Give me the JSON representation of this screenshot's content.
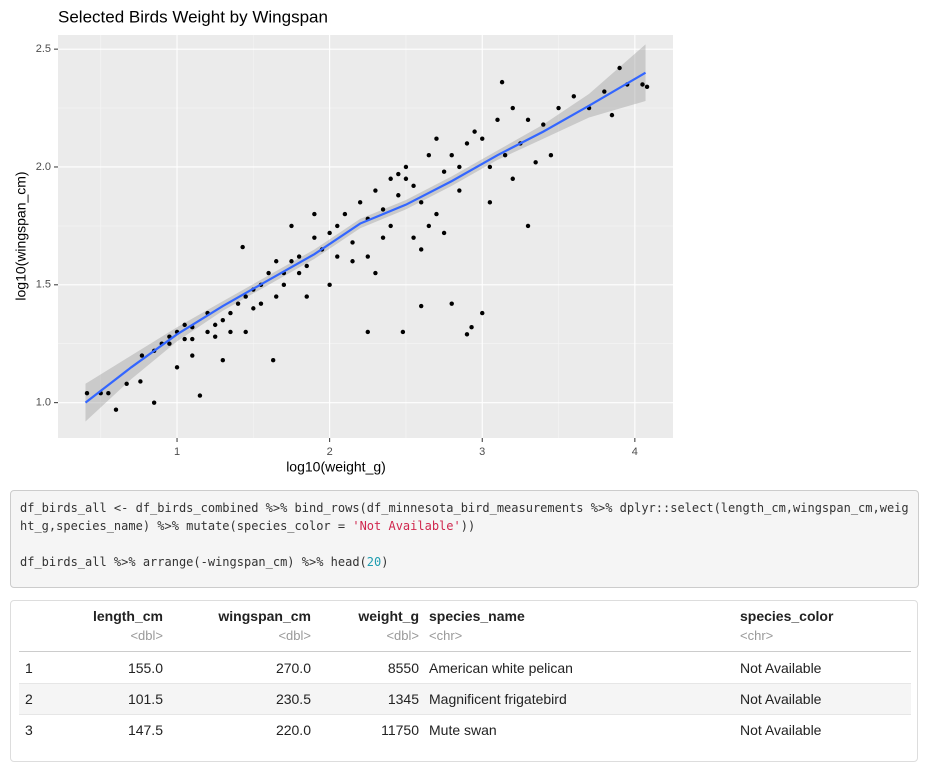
{
  "chart_data": {
    "type": "scatter",
    "title": "Selected Birds Weight by Wingspan",
    "x_label": "log10(weight_g)",
    "y_label": "log10(wingspan_cm)",
    "xlim": [
      0.22,
      4.25
    ],
    "ylim": [
      0.85,
      2.56
    ],
    "xticks": [
      1,
      2,
      3,
      4
    ],
    "yticks": [
      {
        "value": 1,
        "label": "1.0"
      },
      {
        "value": 1.5,
        "label": "1.5"
      },
      {
        "value": 2,
        "label": "2.0"
      },
      {
        "value": 2.5,
        "label": "2.5"
      }
    ],
    "grid": true,
    "color": "#000000",
    "points": {
      "x": [
        0.41,
        0.5,
        0.55,
        0.6,
        0.67,
        0.76,
        0.85,
        0.77,
        0.85,
        0.9,
        0.95,
        1.0,
        1.05,
        1.1,
        1.15,
        1.0,
        1.1,
        1.2,
        1.25,
        1.3,
        1.35,
        1.4,
        1.45,
        1.5,
        1.55,
        1.6,
        1.65,
        1.7,
        1.75,
        1.8,
        1.85,
        1.9,
        1.95,
        2.0,
        2.05,
        2.1,
        2.15,
        2.2,
        2.25,
        2.3,
        2.35,
        2.4,
        2.45,
        2.5,
        2.55,
        2.6,
        2.65,
        2.7,
        2.75,
        2.8,
        2.85,
        2.9,
        2.95,
        3.0,
        3.05,
        3.1,
        3.15,
        3.2,
        3.25,
        3.3,
        3.35,
        3.4,
        3.5,
        3.6,
        3.7,
        3.8,
        3.85,
        3.9,
        3.95,
        4.05,
        4.08,
        3.13,
        2.25,
        2.48,
        2.6,
        2.8,
        2.9,
        2.93,
        3.0,
        1.63,
        1.43,
        1.75,
        1.9,
        2.05,
        2.25,
        1.3,
        1.45,
        1.2,
        1.55,
        2.4,
        2.5,
        2.7,
        2.0,
        1.85,
        2.35,
        2.6,
        3.05,
        3.3,
        1.1,
        1.05,
        0.95,
        1.25,
        1.35,
        1.5,
        1.65,
        1.7,
        1.8,
        2.15,
        2.3,
        2.55,
        2.75,
        2.85,
        3.2,
        3.45,
        2.45,
        2.65
      ],
      "y": [
        1.04,
        1.04,
        1.04,
        0.97,
        1.08,
        1.09,
        1.0,
        1.2,
        1.22,
        1.25,
        1.28,
        1.3,
        1.27,
        1.32,
        1.03,
        1.15,
        1.2,
        1.3,
        1.33,
        1.35,
        1.38,
        1.42,
        1.45,
        1.48,
        1.5,
        1.55,
        1.6,
        1.55,
        1.6,
        1.62,
        1.58,
        1.7,
        1.65,
        1.72,
        1.75,
        1.8,
        1.68,
        1.85,
        1.78,
        1.9,
        1.82,
        1.95,
        1.88,
        2.0,
        1.92,
        1.85,
        1.75,
        1.8,
        1.98,
        2.05,
        1.9,
        2.1,
        2.15,
        2.12,
        2.0,
        2.2,
        2.05,
        1.95,
        2.1,
        2.2,
        2.02,
        2.18,
        2.25,
        2.3,
        2.25,
        2.32,
        2.22,
        2.42,
        2.35,
        2.35,
        2.34,
        2.36,
        1.3,
        1.3,
        1.41,
        1.42,
        1.29,
        1.32,
        1.38,
        1.18,
        1.66,
        1.75,
        1.8,
        1.62,
        1.62,
        1.18,
        1.3,
        1.38,
        1.42,
        1.75,
        1.95,
        2.12,
        1.5,
        1.45,
        1.7,
        1.65,
        1.85,
        1.75,
        1.27,
        1.33,
        1.25,
        1.28,
        1.3,
        1.4,
        1.45,
        1.5,
        1.55,
        1.6,
        1.55,
        1.7,
        1.72,
        2.0,
        2.25,
        2.05,
        1.97,
        2.05
      ]
    },
    "smooth": {
      "color": "#3366ff",
      "band_color": "#999999",
      "x": [
        0.4,
        0.7,
        1.0,
        1.3,
        1.6,
        1.9,
        2.2,
        2.5,
        2.8,
        3.1,
        3.4,
        3.7,
        4.07
      ],
      "y": [
        1.0,
        1.15,
        1.29,
        1.41,
        1.52,
        1.63,
        1.76,
        1.84,
        1.94,
        2.05,
        2.15,
        2.26,
        2.4
      ],
      "lower": [
        0.92,
        1.1,
        1.26,
        1.39,
        1.5,
        1.61,
        1.74,
        1.82,
        1.92,
        2.03,
        2.12,
        2.21,
        2.28
      ],
      "upper": [
        1.08,
        1.2,
        1.32,
        1.43,
        1.54,
        1.65,
        1.78,
        1.86,
        1.96,
        2.07,
        2.18,
        2.31,
        2.52
      ]
    }
  },
  "code": {
    "lines": [
      {
        "tokens": [
          "df_birds_all <- df_birds_combined %>% bind_rows(df_minnesota_bird_measurements %>% dplyr::select(length_cm,wingspan_cm,weight_g,species_name) %>% mutate(species_color = ",
          "'Not Available'",
          "))"
        ],
        "kinds": [
          "plain",
          "str",
          "plain"
        ]
      },
      {
        "tokens": [
          "df_birds_all %>% arrange(-wingspan_cm) %>% head(",
          "20",
          ")"
        ],
        "kinds": [
          "plain",
          "num",
          "plain"
        ]
      }
    ]
  },
  "table": {
    "headers": [
      "",
      "length_cm",
      "wingspan_cm",
      "weight_g",
      "species_name",
      "species_color"
    ],
    "types": [
      "",
      "<dbl>",
      "<dbl>",
      "<dbl>",
      "<chr>",
      "<chr>"
    ],
    "rows": [
      [
        "1",
        "155.0",
        "270.0",
        "8550",
        "American white pelican",
        "Not Available"
      ],
      [
        "2",
        "101.5",
        "230.5",
        "1345",
        "Magnificent frigatebird",
        "Not Available"
      ],
      [
        "3",
        "147.5",
        "220.0",
        "11750",
        "Mute swan",
        "Not Available"
      ]
    ]
  }
}
